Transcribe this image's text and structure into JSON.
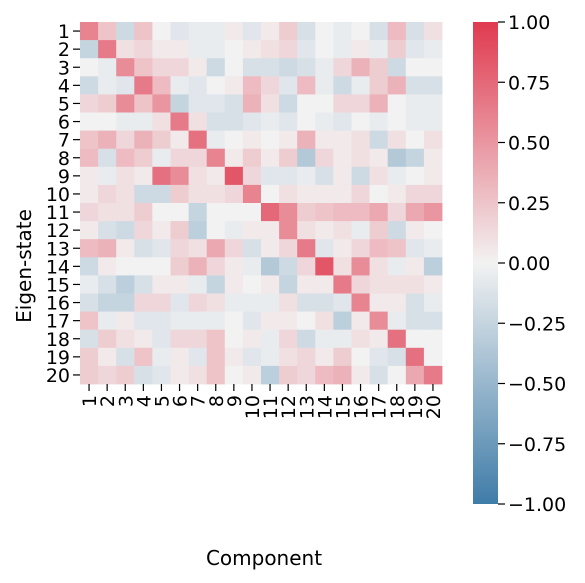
{
  "chart_data": {
    "type": "heatmap",
    "title": "",
    "xlabel": "Component",
    "ylabel": "Eigen-state",
    "x_categories": [
      "1",
      "2",
      "3",
      "4",
      "5",
      "6",
      "7",
      "8",
      "9",
      "10",
      "11",
      "12",
      "13",
      "14",
      "15",
      "16",
      "17",
      "18",
      "19",
      "20"
    ],
    "y_categories": [
      "1",
      "2",
      "3",
      "4",
      "5",
      "6",
      "7",
      "8",
      "9",
      "10",
      "11",
      "12",
      "13",
      "14",
      "15",
      "16",
      "17",
      "18",
      "19",
      "20"
    ],
    "vmin": -1.0,
    "vmax": 1.0,
    "colormap": {
      "low": "#3f7ca8",
      "mid": "#f2f2f2",
      "high": "#e03a4f"
    },
    "colorbar_ticks": [
      "1.00",
      "0.75",
      "0.50",
      "0.25",
      "0.00",
      "−0.25",
      "−0.50",
      "−0.75",
      "−1.00"
    ],
    "colorbar_tick_values": [
      1.0,
      0.75,
      0.5,
      0.25,
      0.0,
      -0.25,
      -0.5,
      -0.75,
      -1.0
    ],
    "values": [
      [
        0.6,
        0.25,
        -0.2,
        0.25,
        0.0,
        -0.1,
        -0.05,
        -0.05,
        0.05,
        -0.1,
        0.05,
        0.2,
        -0.15,
        0.0,
        -0.05,
        0.0,
        -0.15,
        0.3,
        -0.15,
        0.1
      ],
      [
        -0.25,
        0.65,
        0.1,
        0.15,
        0.05,
        0.05,
        -0.05,
        -0.05,
        0.0,
        0.05,
        0.1,
        0.15,
        -0.1,
        0.0,
        -0.05,
        0.05,
        -0.05,
        0.2,
        -0.1,
        -0.05
      ],
      [
        0.0,
        -0.05,
        0.55,
        0.25,
        0.15,
        0.15,
        0.05,
        -0.2,
        0.0,
        -0.15,
        -0.15,
        -0.2,
        -0.15,
        -0.05,
        0.15,
        0.35,
        0.2,
        -0.2,
        0.0,
        0.0
      ],
      [
        -0.2,
        -0.05,
        -0.1,
        0.65,
        0.3,
        -0.05,
        -0.1,
        0.0,
        0.05,
        0.3,
        0.15,
        -0.1,
        0.3,
        -0.05,
        -0.2,
        -0.05,
        0.2,
        0.35,
        -0.15,
        -0.15
      ],
      [
        0.15,
        0.2,
        0.55,
        0.25,
        0.5,
        -0.25,
        -0.1,
        -0.1,
        -0.15,
        0.35,
        0.1,
        -0.2,
        0.0,
        0.0,
        0.15,
        0.15,
        0.35,
        0.0,
        -0.05,
        -0.05
      ],
      [
        0.0,
        0.0,
        -0.05,
        -0.05,
        0.1,
        0.65,
        0.1,
        -0.15,
        -0.15,
        -0.1,
        -0.05,
        -0.1,
        0.0,
        -0.05,
        -0.1,
        0.0,
        -0.05,
        0.0,
        -0.05,
        -0.05
      ],
      [
        0.25,
        0.35,
        0.15,
        0.35,
        0.2,
        0.05,
        0.7,
        -0.05,
        0.0,
        0.05,
        0.0,
        0.05,
        0.35,
        0.05,
        0.05,
        0.1,
        -0.2,
        0.1,
        0.0,
        0.1
      ],
      [
        0.3,
        -0.15,
        0.3,
        0.2,
        -0.05,
        0.15,
        0.15,
        0.6,
        0.05,
        0.2,
        0.05,
        0.2,
        -0.35,
        0.15,
        0.05,
        0.1,
        0.05,
        -0.35,
        -0.25,
        0.05
      ],
      [
        0.05,
        -0.05,
        0.1,
        0.05,
        0.7,
        0.55,
        0.1,
        0.05,
        0.85,
        0.15,
        -0.1,
        -0.1,
        -0.05,
        -0.15,
        0.05,
        -0.2,
        0.1,
        -0.05,
        0.0,
        0.05
      ],
      [
        0.05,
        0.15,
        0.1,
        -0.2,
        -0.2,
        0.2,
        0.1,
        0.1,
        0.15,
        0.6,
        0.0,
        0.1,
        0.05,
        0.05,
        0.05,
        0.15,
        0.0,
        0.05,
        0.15,
        0.15
      ],
      [
        0.15,
        0.1,
        0.1,
        0.2,
        0.0,
        0.0,
        -0.25,
        0.0,
        0.0,
        0.0,
        0.75,
        0.55,
        0.2,
        0.25,
        0.3,
        0.3,
        0.4,
        0.15,
        0.4,
        0.5
      ],
      [
        0.05,
        -0.15,
        -0.2,
        0.15,
        0.05,
        0.2,
        -0.3,
        0.0,
        -0.05,
        0.05,
        0.05,
        0.55,
        0.1,
        0.05,
        0.1,
        -0.05,
        0.2,
        -0.2,
        0.05,
        0.0
      ],
      [
        0.3,
        0.35,
        0.05,
        -0.15,
        -0.1,
        0.15,
        0.1,
        0.4,
        0.15,
        -0.15,
        0.05,
        0.15,
        0.65,
        -0.1,
        0.05,
        0.15,
        0.3,
        0.25,
        -0.1,
        -0.05
      ],
      [
        -0.2,
        0.05,
        0.0,
        0.0,
        0.0,
        0.2,
        0.35,
        0.15,
        0.05,
        -0.05,
        -0.35,
        -0.2,
        0.15,
        0.85,
        0.1,
        0.55,
        0.1,
        -0.05,
        0.05,
        -0.3
      ],
      [
        -0.05,
        -0.15,
        -0.3,
        -0.15,
        0.05,
        0.05,
        -0.05,
        -0.25,
        0.05,
        0.0,
        0.05,
        -0.25,
        0.05,
        0.05,
        0.65,
        0.15,
        0.1,
        0.1,
        0.1,
        0.05
      ],
      [
        -0.15,
        -0.25,
        -0.25,
        0.15,
        0.15,
        -0.1,
        0.15,
        0.1,
        -0.05,
        -0.05,
        -0.05,
        0.1,
        -0.15,
        -0.15,
        -0.1,
        0.6,
        0.05,
        0.05,
        -0.15,
        -0.05
      ],
      [
        0.25,
        -0.05,
        0.05,
        -0.1,
        -0.1,
        -0.05,
        -0.05,
        -0.05,
        0.0,
        -0.1,
        0.05,
        0.05,
        0.0,
        0.1,
        -0.3,
        0.05,
        0.55,
        -0.05,
        -0.15,
        -0.15
      ],
      [
        -0.15,
        0.2,
        0.1,
        0.05,
        -0.1,
        0.15,
        0.15,
        0.25,
        0.0,
        0.05,
        -0.05,
        0.15,
        -0.2,
        -0.05,
        -0.05,
        0.1,
        0.05,
        0.7,
        0.0,
        0.0
      ],
      [
        0.2,
        0.05,
        -0.15,
        0.25,
        -0.05,
        0.05,
        -0.1,
        0.25,
        0.05,
        -0.1,
        -0.05,
        0.1,
        0.15,
        0.05,
        0.2,
        0.0,
        -0.1,
        -0.15,
        0.7,
        0.0
      ],
      [
        0.2,
        0.15,
        0.2,
        -0.15,
        -0.1,
        0.05,
        0.1,
        0.25,
        0.0,
        0.05,
        -0.3,
        0.2,
        0.15,
        0.3,
        0.35,
        0.05,
        -0.15,
        0.0,
        0.4,
        0.65
      ]
    ]
  }
}
